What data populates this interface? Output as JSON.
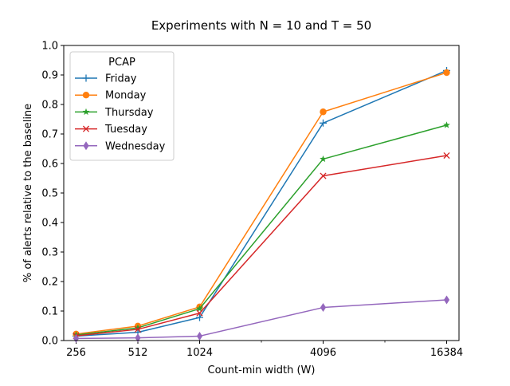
{
  "chart_data": {
    "type": "line",
    "title": "Experiments with N = 10 and T = 50",
    "xlabel": "Count-min width (W)",
    "ylabel": "% of alerts relative to the baseline",
    "x_scale": "log2",
    "x": [
      256,
      512,
      1024,
      4096,
      16384
    ],
    "x_tick_labels": [
      "256",
      "512",
      "1024",
      "4096",
      "16384"
    ],
    "xlim": [
      256,
      16384
    ],
    "ylim": [
      0,
      1.0
    ],
    "y_ticks": [
      0.0,
      0.1,
      0.2,
      0.3,
      0.4,
      0.5,
      0.6,
      0.7,
      0.8,
      0.9,
      1.0
    ],
    "y_tick_labels": [
      "0.0",
      "0.1",
      "0.2",
      "0.3",
      "0.4",
      "0.5",
      "0.6",
      "0.7",
      "0.8",
      "0.9",
      "1.0"
    ],
    "grid": false,
    "legend": {
      "title": "PCAP",
      "placement": "top-left"
    },
    "series": [
      {
        "name": "Friday",
        "color": "#1f77b4",
        "marker": "plus",
        "values": [
          0.015,
          0.028,
          0.078,
          0.737,
          0.915
        ]
      },
      {
        "name": "Monday",
        "color": "#ff7f0e",
        "marker": "circle",
        "values": [
          0.022,
          0.049,
          0.114,
          0.775,
          0.908
        ]
      },
      {
        "name": "Thursday",
        "color": "#2ca02c",
        "marker": "star",
        "values": [
          0.019,
          0.043,
          0.108,
          0.615,
          0.73
        ]
      },
      {
        "name": "Tuesday",
        "color": "#d62728",
        "marker": "x",
        "values": [
          0.016,
          0.038,
          0.093,
          0.558,
          0.627
        ]
      },
      {
        "name": "Wednesday",
        "color": "#9467bd",
        "marker": "diamond",
        "values": [
          0.007,
          0.009,
          0.015,
          0.112,
          0.138
        ]
      }
    ]
  }
}
